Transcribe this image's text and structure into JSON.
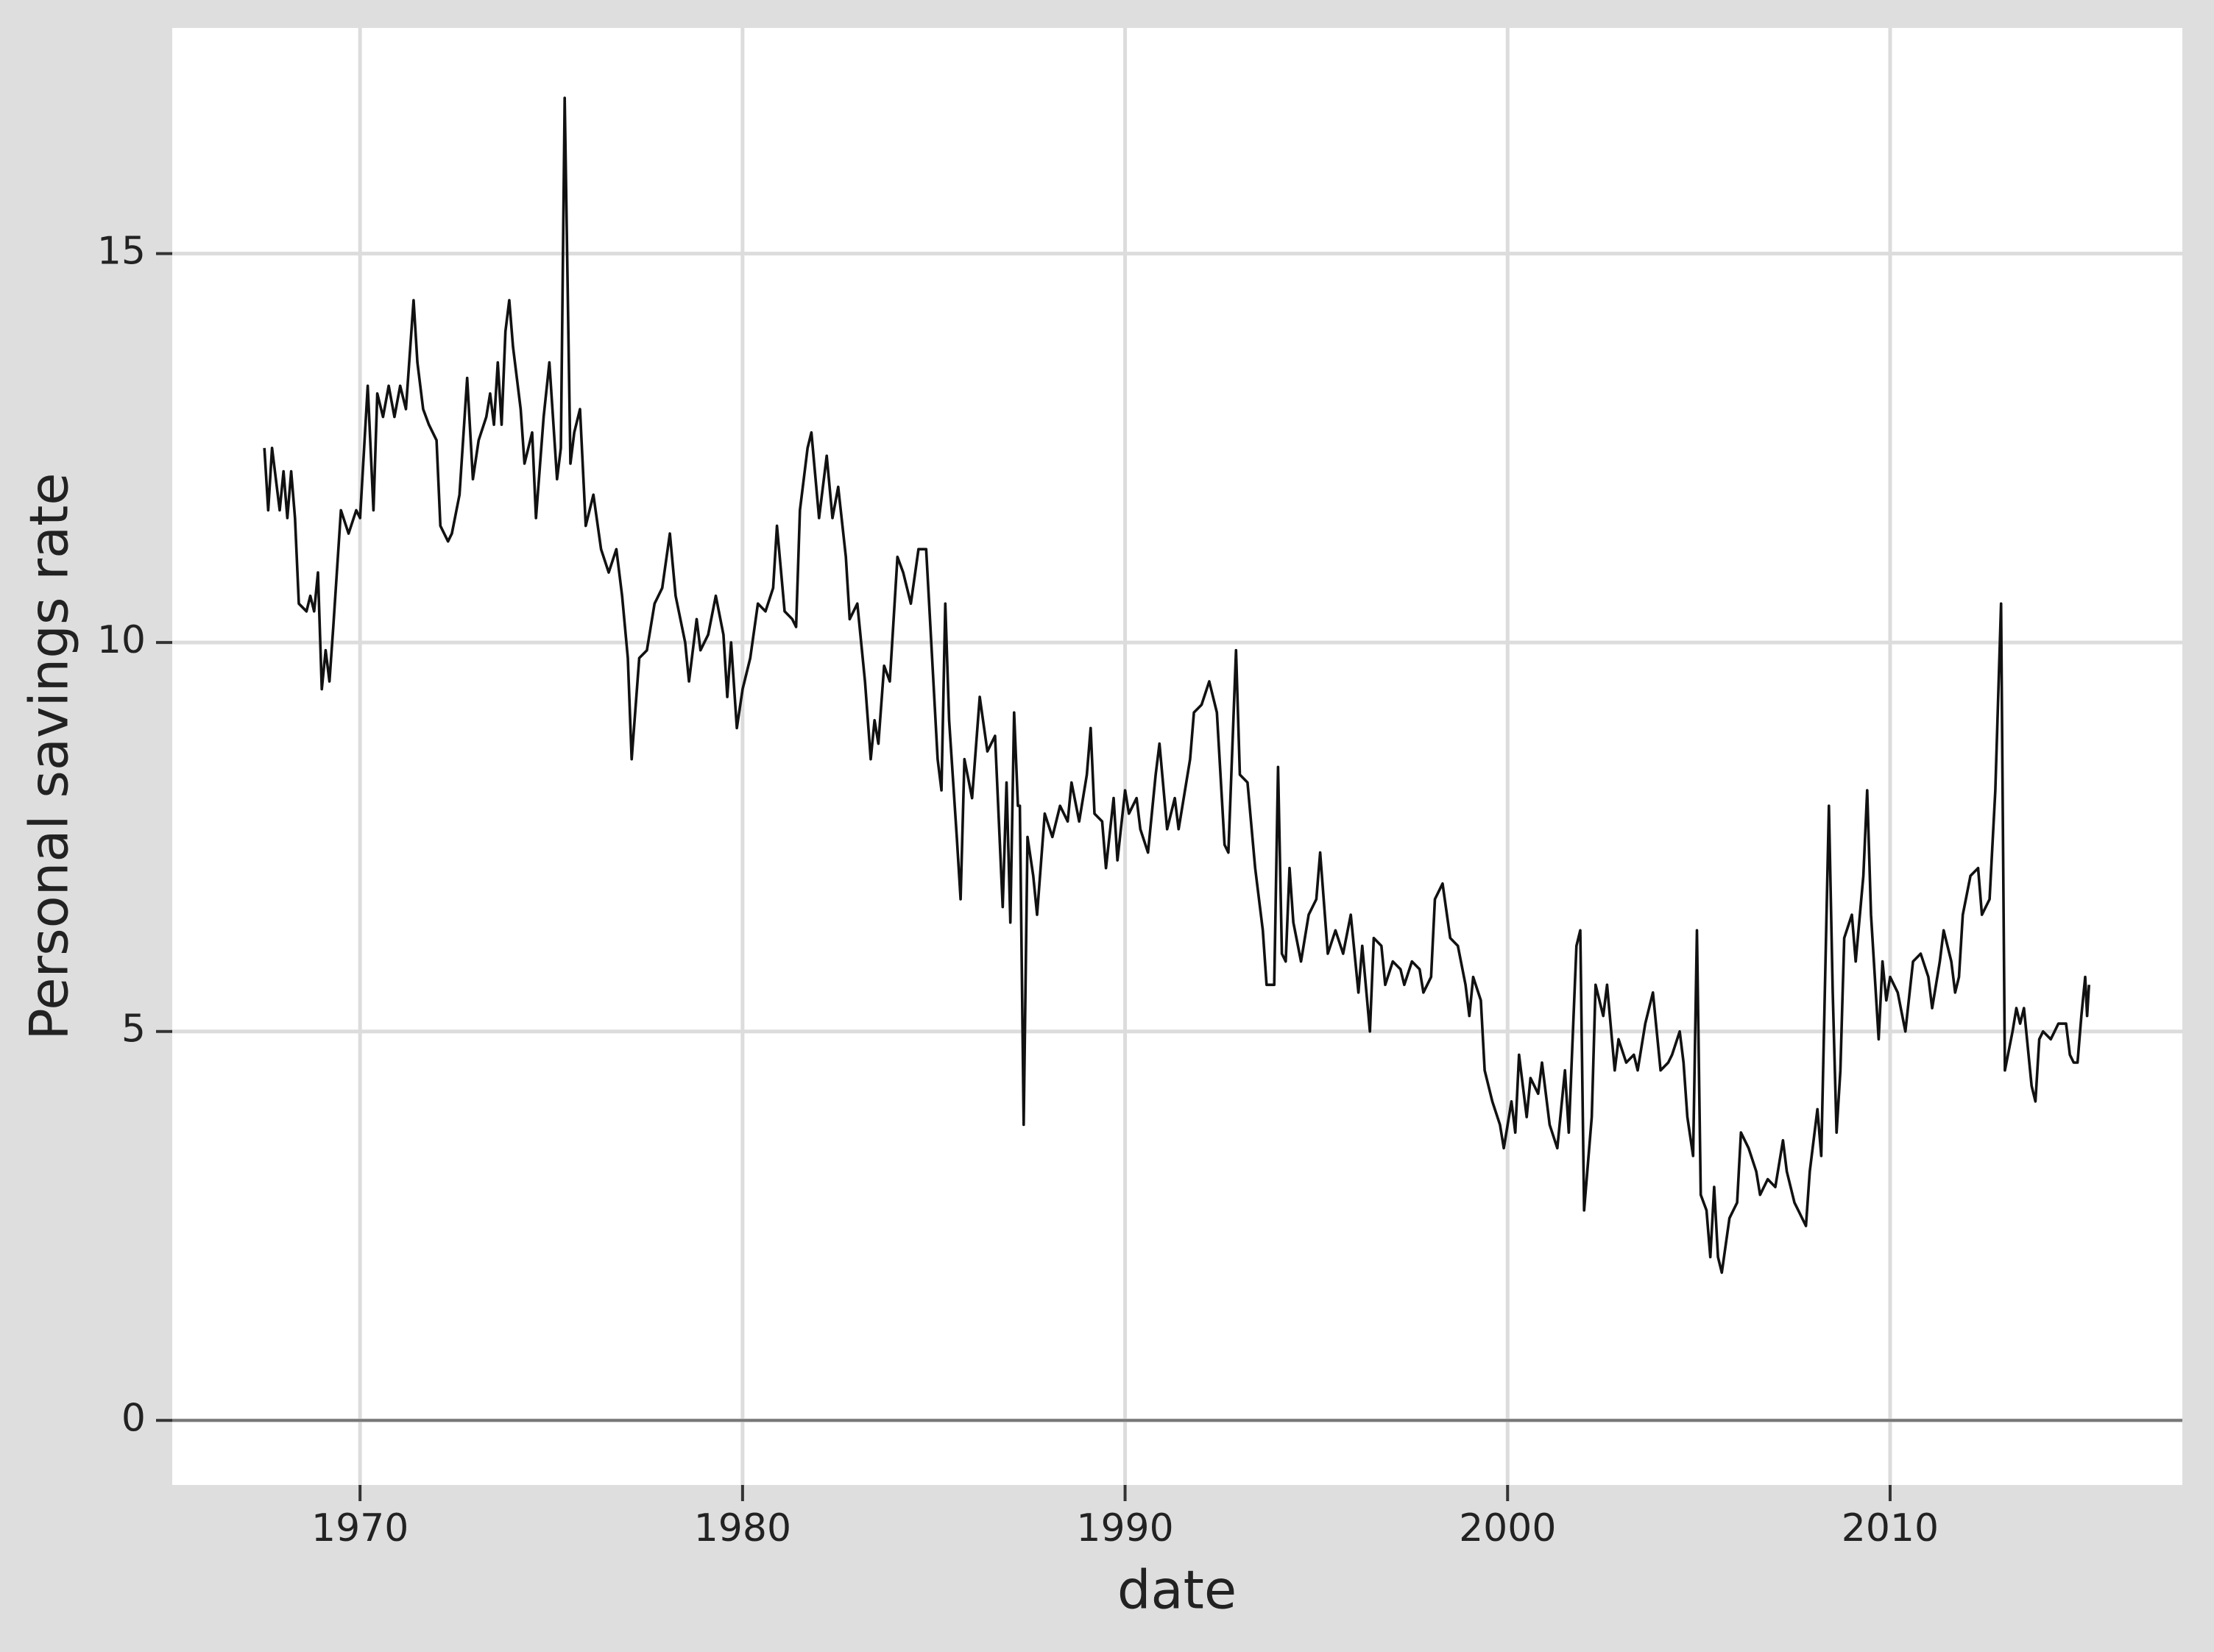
{
  "chart_data": {
    "type": "line",
    "x_label": "date",
    "y_label": "Personal savings rate",
    "xlim": [
      1965.09,
      2017.64
    ],
    "ylim": [
      -0.83,
      17.9
    ],
    "xticks": [
      1970,
      1980,
      1990,
      2000,
      2010
    ],
    "yticks": [
      0,
      5,
      10,
      15
    ],
    "grid": true,
    "hline": 0,
    "series": [
      {
        "color": "#111111",
        "x": [
          1967.5,
          1967.6,
          1967.7,
          1967.9,
          1968.0,
          1968.1,
          1968.2,
          1968.3,
          1968.4,
          1968.6,
          1968.7,
          1968.8,
          1968.9,
          1969.0,
          1969.1,
          1969.2,
          1969.3,
          1969.5,
          1969.7,
          1969.9,
          1970.0,
          1970.2,
          1970.35,
          1970.45,
          1970.6,
          1970.75,
          1970.9,
          1971.05,
          1971.2,
          1971.4,
          1971.5,
          1971.65,
          1971.8,
          1972.0,
          1972.1,
          1972.3,
          1972.4,
          1972.6,
          1972.8,
          1972.95,
          1973.1,
          1973.3,
          1973.4,
          1973.5,
          1973.6,
          1973.7,
          1973.8,
          1973.9,
          1974.0,
          1974.2,
          1974.3,
          1974.5,
          1974.6,
          1974.8,
          1974.95,
          1975.15,
          1975.25,
          1975.35,
          1975.5,
          1975.6,
          1975.75,
          1975.9,
          1976.1,
          1976.3,
          1976.5,
          1976.7,
          1976.85,
          1977.0,
          1977.1,
          1977.3,
          1977.5,
          1977.7,
          1977.9,
          1978.1,
          1978.25,
          1978.5,
          1978.6,
          1978.8,
          1978.9,
          1979.1,
          1979.3,
          1979.5,
          1979.6,
          1979.7,
          1979.85,
          1980.0,
          1980.2,
          1980.4,
          1980.6,
          1980.8,
          1980.9,
          1981.1,
          1981.3,
          1981.4,
          1981.5,
          1981.7,
          1981.8,
          1982.0,
          1982.2,
          1982.35,
          1982.5,
          1982.7,
          1982.8,
          1983.0,
          1983.2,
          1983.35,
          1983.45,
          1983.55,
          1983.7,
          1983.85,
          1984.05,
          1984.2,
          1984.4,
          1984.6,
          1984.8,
          1984.9,
          1985.1,
          1985.2,
          1985.3,
          1985.4,
          1985.6,
          1985.7,
          1985.8,
          1986.0,
          1986.2,
          1986.4,
          1986.6,
          1986.8,
          1986.9,
          1987.0,
          1987.1,
          1987.2,
          1987.25,
          1987.35,
          1987.45,
          1987.6,
          1987.7,
          1987.9,
          1988.1,
          1988.3,
          1988.5,
          1988.6,
          1988.8,
          1989.0,
          1989.1,
          1989.2,
          1989.4,
          1989.5,
          1989.7,
          1989.8,
          1990.0,
          1990.1,
          1990.3,
          1990.4,
          1990.6,
          1990.8,
          1990.9,
          1991.1,
          1991.3,
          1991.4,
          1991.7,
          1991.8,
          1992.0,
          1992.2,
          1992.4,
          1992.6,
          1992.7,
          1992.9,
          1993.0,
          1993.2,
          1993.4,
          1993.6,
          1993.7,
          1993.9,
          1994.0,
          1994.1,
          1994.2,
          1994.3,
          1994.4,
          1994.6,
          1994.8,
          1995.0,
          1995.1,
          1995.3,
          1995.5,
          1995.7,
          1995.9,
          1996.1,
          1996.2,
          1996.4,
          1996.5,
          1996.7,
          1996.8,
          1997.0,
          1997.2,
          1997.3,
          1997.5,
          1997.7,
          1997.8,
          1998.0,
          1998.1,
          1998.3,
          1998.5,
          1998.7,
          1998.9,
          1999.0,
          1999.1,
          1999.3,
          1999.4,
          1999.6,
          1999.8,
          1999.9,
          2000.1,
          2000.2,
          2000.3,
          2000.5,
          2000.6,
          2000.8,
          2000.9,
          2001.1,
          2001.3,
          2001.4,
          2001.5,
          2001.6,
          2001.8,
          2001.9,
          2002.0,
          2002.2,
          2002.3,
          2002.5,
          2002.6,
          2002.8,
          2002.9,
          2003.1,
          2003.3,
          2003.4,
          2003.6,
          2003.8,
          2004.0,
          2004.2,
          2004.3,
          2004.5,
          2004.6,
          2004.7,
          2004.85,
          2004.95,
          2005.05,
          2005.2,
          2005.3,
          2005.4,
          2005.5,
          2005.6,
          2005.8,
          2006.0,
          2006.1,
          2006.3,
          2006.5,
          2006.6,
          2006.8,
          2007.0,
          2007.2,
          2007.3,
          2007.5,
          2007.6,
          2007.8,
          2007.9,
          2008.1,
          2008.2,
          2008.4,
          2008.5,
          2008.6,
          2008.7,
          2008.8,
          2009.0,
          2009.1,
          2009.3,
          2009.4,
          2009.5,
          2009.7,
          2009.8,
          2009.9,
          2010.0,
          2010.2,
          2010.4,
          2010.6,
          2010.8,
          2011.0,
          2011.1,
          2011.3,
          2011.4,
          2011.6,
          2011.7,
          2011.8,
          2011.9,
          2012.1,
          2012.3,
          2012.4,
          2012.6,
          2012.75,
          2012.9,
          2013.0,
          2013.2,
          2013.3,
          2013.4,
          2013.5,
          2013.7,
          2013.8,
          2013.9,
          2014.0,
          2014.2,
          2014.4,
          2014.6,
          2014.7,
          2014.8,
          2014.9,
          2015.0,
          2015.1,
          2015.15,
          2015.2
        ],
        "values": [
          12.5,
          11.7,
          12.5,
          11.7,
          12.2,
          11.6,
          12.2,
          11.6,
          10.5,
          10.4,
          10.6,
          10.4,
          10.9,
          9.4,
          9.9,
          9.5,
          10.2,
          11.7,
          11.4,
          11.7,
          11.6,
          13.3,
          11.7,
          13.2,
          12.9,
          13.3,
          12.9,
          13.3,
          13.0,
          14.4,
          13.6,
          13.0,
          12.8,
          12.6,
          11.5,
          11.3,
          11.4,
          11.9,
          13.4,
          12.1,
          12.6,
          12.9,
          13.2,
          12.8,
          13.6,
          12.8,
          14.0,
          14.4,
          13.8,
          13.0,
          12.3,
          12.7,
          11.6,
          12.9,
          13.6,
          12.1,
          12.5,
          17.0,
          12.3,
          12.7,
          13.0,
          11.5,
          11.9,
          11.2,
          10.9,
          11.2,
          10.6,
          9.8,
          8.5,
          9.8,
          9.9,
          10.5,
          10.7,
          11.4,
          10.6,
          10.0,
          9.5,
          10.3,
          9.9,
          10.1,
          10.6,
          10.1,
          9.3,
          10.0,
          8.9,
          9.4,
          9.8,
          10.5,
          10.4,
          10.7,
          11.5,
          10.4,
          10.3,
          10.2,
          11.7,
          12.5,
          12.7,
          11.6,
          12.4,
          11.6,
          12.0,
          11.1,
          10.3,
          10.5,
          9.5,
          8.5,
          9.0,
          8.7,
          9.7,
          9.5,
          11.1,
          10.9,
          10.5,
          11.2,
          11.2,
          10.3,
          8.5,
          8.1,
          10.5,
          9.0,
          7.5,
          6.7,
          8.5,
          8.0,
          9.3,
          8.6,
          8.8,
          6.6,
          8.2,
          6.4,
          9.1,
          7.9,
          7.9,
          3.8,
          7.5,
          7.0,
          6.5,
          7.8,
          7.5,
          7.9,
          7.7,
          8.2,
          7.7,
          8.3,
          8.9,
          7.8,
          7.7,
          7.1,
          8.0,
          7.2,
          8.1,
          7.8,
          8.0,
          7.6,
          7.3,
          8.3,
          8.7,
          7.6,
          8.0,
          7.6,
          8.5,
          9.1,
          9.2,
          9.5,
          9.1,
          7.4,
          7.3,
          9.9,
          8.3,
          8.2,
          7.1,
          6.3,
          5.6,
          5.6,
          8.4,
          6.0,
          5.9,
          7.1,
          6.4,
          5.9,
          6.5,
          6.7,
          7.3,
          6.0,
          6.3,
          6.0,
          6.5,
          5.5,
          6.1,
          5.0,
          6.2,
          6.1,
          5.6,
          5.9,
          5.8,
          5.6,
          5.9,
          5.8,
          5.5,
          5.7,
          6.7,
          6.9,
          6.2,
          6.1,
          5.6,
          5.2,
          5.7,
          5.4,
          4.5,
          4.1,
          3.8,
          3.5,
          4.1,
          3.7,
          4.7,
          3.9,
          4.4,
          4.2,
          4.6,
          3.8,
          3.5,
          4.0,
          4.5,
          3.7,
          6.1,
          6.3,
          2.7,
          3.9,
          5.6,
          5.2,
          5.6,
          4.5,
          4.9,
          4.6,
          4.7,
          4.5,
          5.1,
          5.5,
          4.5,
          4.6,
          4.7,
          5.0,
          4.6,
          3.9,
          3.4,
          6.3,
          2.9,
          2.7,
          2.1,
          3.0,
          2.1,
          1.9,
          2.6,
          2.8,
          3.7,
          3.5,
          3.2,
          2.9,
          3.1,
          3.0,
          3.6,
          3.2,
          2.8,
          2.7,
          2.5,
          3.2,
          4.0,
          3.4,
          7.9,
          5.5,
          3.7,
          4.5,
          6.2,
          6.5,
          5.9,
          7.0,
          8.1,
          6.5,
          4.9,
          5.9,
          5.4,
          5.7,
          5.5,
          5.0,
          5.9,
          6.0,
          5.7,
          5.3,
          5.9,
          6.3,
          5.9,
          5.5,
          5.7,
          6.5,
          7.0,
          7.1,
          6.5,
          6.7,
          8.1,
          10.5,
          4.5,
          5.0,
          5.3,
          5.1,
          5.3,
          4.3,
          4.1,
          4.9,
          5.0,
          4.9,
          5.1,
          5.1,
          4.7,
          4.6,
          4.6,
          5.2,
          5.7,
          5.2,
          5.6
        ]
      }
    ]
  }
}
